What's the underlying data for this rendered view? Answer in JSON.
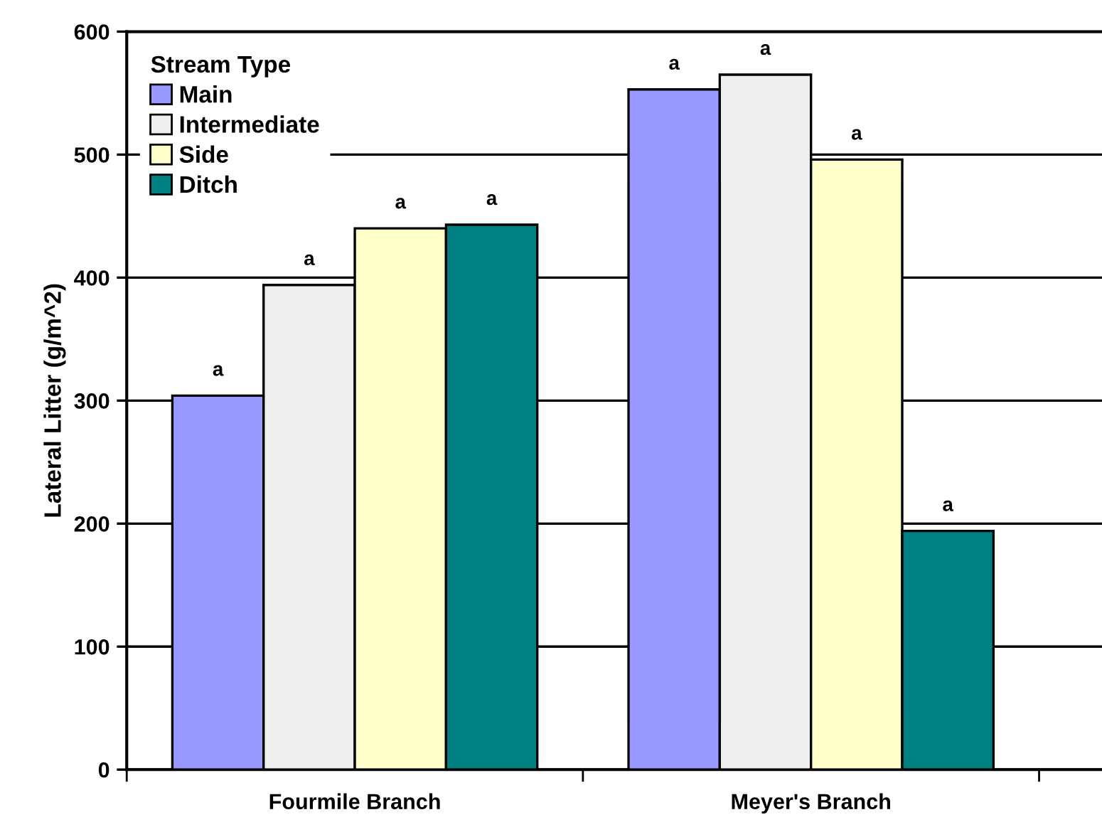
{
  "chart_data": {
    "type": "bar",
    "ylabel": "Lateral Litter (g/m^2)",
    "legend_title": "Stream Type",
    "categories": [
      "Fourmile Branch",
      "Meyer's Branch"
    ],
    "series": [
      {
        "name": "Main",
        "color": "#9999ff",
        "values": [
          304,
          553
        ],
        "value_labels": [
          "a",
          "a"
        ]
      },
      {
        "name": "Intermediate",
        "color": "#eeeeee",
        "values": [
          394,
          565
        ],
        "value_labels": [
          "a",
          "a"
        ]
      },
      {
        "name": "Side",
        "color": "#ffffcc",
        "values": [
          440,
          496
        ],
        "value_labels": [
          "a",
          "a"
        ]
      },
      {
        "name": "Ditch",
        "color": "#008080",
        "values": [
          443,
          194
        ],
        "value_labels": [
          "a",
          "a"
        ]
      }
    ],
    "ylim": [
      0,
      600
    ],
    "yticks": [
      0,
      100,
      200,
      300,
      400,
      500,
      600
    ],
    "grid": "y",
    "legend": "top left"
  }
}
